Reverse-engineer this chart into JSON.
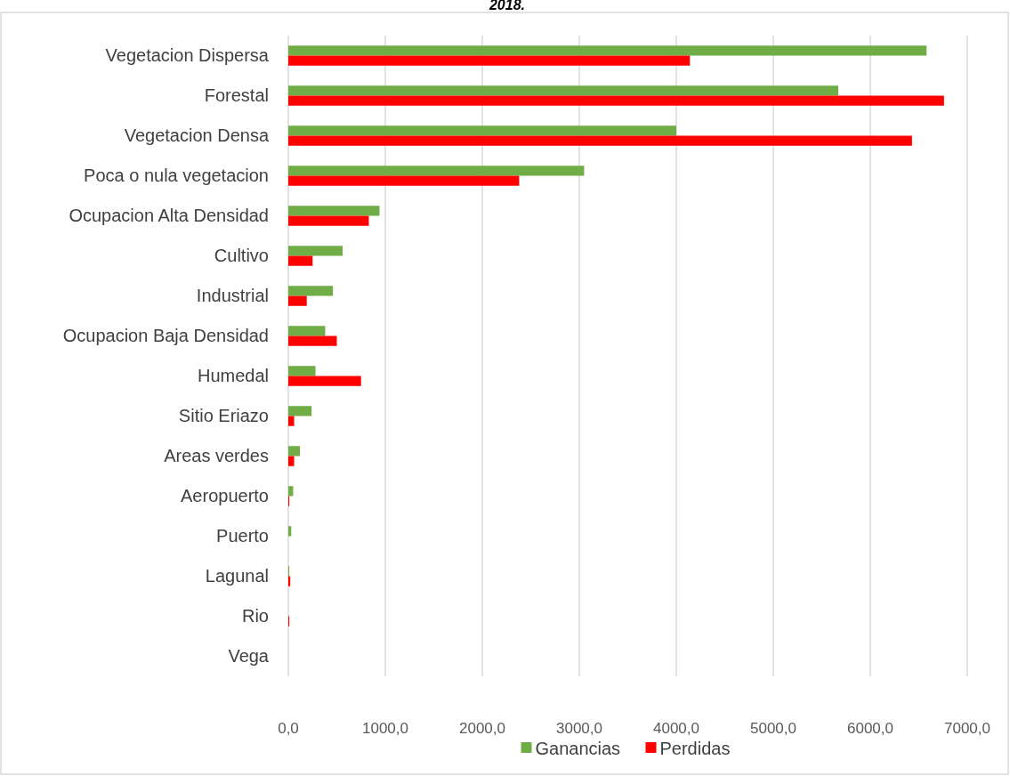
{
  "chart_data": {
    "type": "bar",
    "orientation": "horizontal",
    "title": "2018.",
    "categories": [
      "Vegetacion Dispersa",
      "Forestal",
      "Vegetacion Densa",
      "Poca o nula vegetacion",
      "Ocupacion Alta Densidad",
      "Cultivo",
      "Industrial",
      "Ocupacion Baja Densidad",
      "Humedal",
      "Sitio Eriazo",
      "Areas verdes",
      "Aeropuerto",
      "Puerto",
      "Lagunal",
      "Rio",
      "Vega"
    ],
    "series": [
      {
        "name": "Ganancias",
        "color": "#70ad47",
        "values": [
          6580,
          5670,
          4000,
          3050,
          940,
          560,
          460,
          380,
          280,
          240,
          120,
          50,
          30,
          10,
          0,
          0
        ]
      },
      {
        "name": "Perdidas",
        "color": "#ff0000",
        "values": [
          4140,
          6760,
          6430,
          2380,
          830,
          250,
          190,
          500,
          750,
          60,
          60,
          10,
          0,
          20,
          10,
          0
        ]
      }
    ],
    "xlim": [
      0,
      7000
    ],
    "xticks": [
      {
        "value": 0,
        "label": "0,0"
      },
      {
        "value": 1000,
        "label": "1000,0"
      },
      {
        "value": 2000,
        "label": "2000,0"
      },
      {
        "value": 3000,
        "label": "3000,0"
      },
      {
        "value": 4000,
        "label": "4000,0"
      },
      {
        "value": 5000,
        "label": "5000,0"
      },
      {
        "value": 6000,
        "label": "6000,0"
      },
      {
        "value": 7000,
        "label": "7000,0"
      }
    ],
    "grid": "x",
    "legend": "bottom"
  }
}
